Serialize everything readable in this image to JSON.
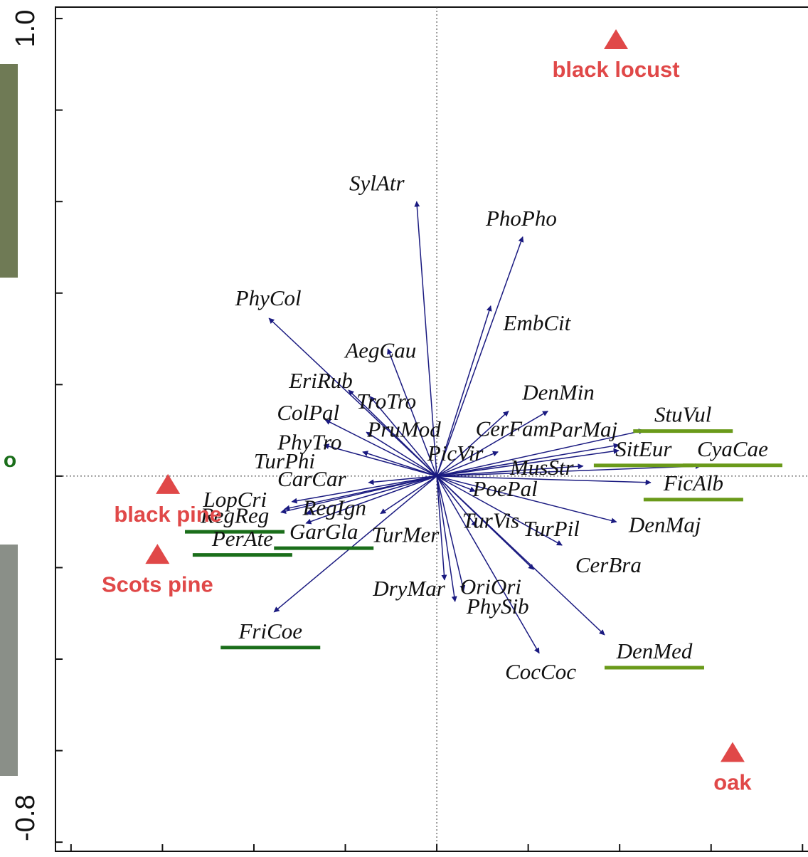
{
  "chart_data": {
    "type": "biplot",
    "side_label": "o",
    "xlim": [
      -0.834,
      0.812
    ],
    "ylim": [
      -0.82,
      1.025
    ],
    "yticks": [
      {
        "value": -0.8,
        "label": "-0.8"
      },
      {
        "value": 1,
        "label": "1.0"
      }
    ],
    "y_minor_ticks": [
      -0.6,
      -0.4,
      -0.2,
      0,
      0.2,
      0.4,
      0.6,
      0.8
    ],
    "x_minor_ticks": [
      -0.8,
      -0.6,
      -0.4,
      -0.2,
      0,
      0.2,
      0.4,
      0.6,
      0.8
    ],
    "arrow_color": "#1a1a80",
    "site_color": "#e04848",
    "species": [
      {
        "name": "SylAtr",
        "x": -0.044,
        "y": 0.6,
        "highlight": null
      },
      {
        "name": "PhoPho",
        "x": 0.188,
        "y": 0.523,
        "highlight": null
      },
      {
        "name": "EmbCit",
        "x": 0.118,
        "y": 0.372,
        "highlight": null
      },
      {
        "name": "PhyCol",
        "x": -0.367,
        "y": 0.345,
        "highlight": null
      },
      {
        "name": "AegCau",
        "x": -0.107,
        "y": 0.278,
        "highlight": null
      },
      {
        "name": "EriRub",
        "x": -0.193,
        "y": 0.188,
        "highlight": null
      },
      {
        "name": "TroTro",
        "x": -0.146,
        "y": 0.174,
        "highlight": null
      },
      {
        "name": "ColPal",
        "x": -0.244,
        "y": 0.123,
        "highlight": null
      },
      {
        "name": "PruMod",
        "x": -0.154,
        "y": 0.096,
        "highlight": null
      },
      {
        "name": "PhyTro",
        "x": -0.247,
        "y": 0.068,
        "highlight": null
      },
      {
        "name": "TurPhi",
        "x": -0.162,
        "y": 0.053,
        "highlight": null
      },
      {
        "name": "CarCar",
        "x": -0.149,
        "y": -0.014,
        "highlight": null
      },
      {
        "name": "PicVir",
        "x": 0.134,
        "y": 0.053,
        "highlight": null
      },
      {
        "name": "DenMin",
        "x": 0.157,
        "y": 0.142,
        "highlight": null
      },
      {
        "name": "CerFam",
        "x": 0.243,
        "y": 0.142,
        "highlight": null
      },
      {
        "name": "ParMaj",
        "x": 0.398,
        "y": 0.068,
        "highlight": null
      },
      {
        "name": "StuVul",
        "x": 0.453,
        "y": 0.1,
        "highlight": "#6a9a1a"
      },
      {
        "name": "SitEur",
        "x": 0.398,
        "y": 0.056,
        "highlight": "#6a9a1a"
      },
      {
        "name": "CyaCae",
        "x": 0.577,
        "y": 0.022,
        "highlight": "#6a9a1a"
      },
      {
        "name": "MusStr",
        "x": 0.32,
        "y": 0.022,
        "highlight": null
      },
      {
        "name": "FicAlb",
        "x": 0.468,
        "y": -0.014,
        "highlight": "#6a9a1a"
      },
      {
        "name": "PoePal",
        "x": 0.084,
        "y": -0.033,
        "highlight": null
      },
      {
        "name": "DenMaj",
        "x": 0.393,
        "y": -0.1,
        "highlight": null
      },
      {
        "name": "TurVis",
        "x": 0.087,
        "y": -0.11,
        "highlight": null
      },
      {
        "name": "TurPil",
        "x": 0.274,
        "y": -0.151,
        "highlight": null
      },
      {
        "name": "CerBra",
        "x": 0.212,
        "y": -0.204,
        "highlight": null
      },
      {
        "name": "DenMed",
        "x": 0.367,
        "y": -0.347,
        "highlight": "#6a9a1a"
      },
      {
        "name": "CocCoc",
        "x": 0.224,
        "y": -0.387,
        "highlight": null
      },
      {
        "name": "OriOri",
        "x": 0.059,
        "y": -0.25,
        "highlight": null
      },
      {
        "name": "PhySib",
        "x": 0.04,
        "y": -0.274,
        "highlight": null
      },
      {
        "name": "DryMar",
        "x": 0.017,
        "y": -0.227,
        "highlight": null
      },
      {
        "name": "TurMer",
        "x": -0.123,
        "y": -0.082,
        "highlight": null
      },
      {
        "name": "GarGla",
        "x": -0.286,
        "y": -0.103,
        "highlight": "#1a6e1a"
      },
      {
        "name": "RegIgn",
        "x": -0.286,
        "y": -0.082,
        "highlight": null
      },
      {
        "name": "LopCri",
        "x": -0.317,
        "y": -0.056,
        "highlight": null
      },
      {
        "name": "RegReg",
        "x": -0.333,
        "y": -0.072,
        "highlight": "#1a6e1a"
      },
      {
        "name": "PerAte",
        "x": -0.341,
        "y": -0.079,
        "highlight": "#1a6e1a"
      },
      {
        "name": "FriCoe",
        "x": -0.356,
        "y": -0.297,
        "highlight": "#1a6e1a"
      }
    ],
    "sites": [
      {
        "name": "black locust",
        "x": 0.392,
        "y": 0.955
      },
      {
        "name": "black pine",
        "x": -0.588,
        "y": -0.017
      },
      {
        "name": "Scots pine",
        "x": -0.611,
        "y": -0.17
      },
      {
        "name": "oak",
        "x": 0.647,
        "y": -0.603
      }
    ]
  }
}
